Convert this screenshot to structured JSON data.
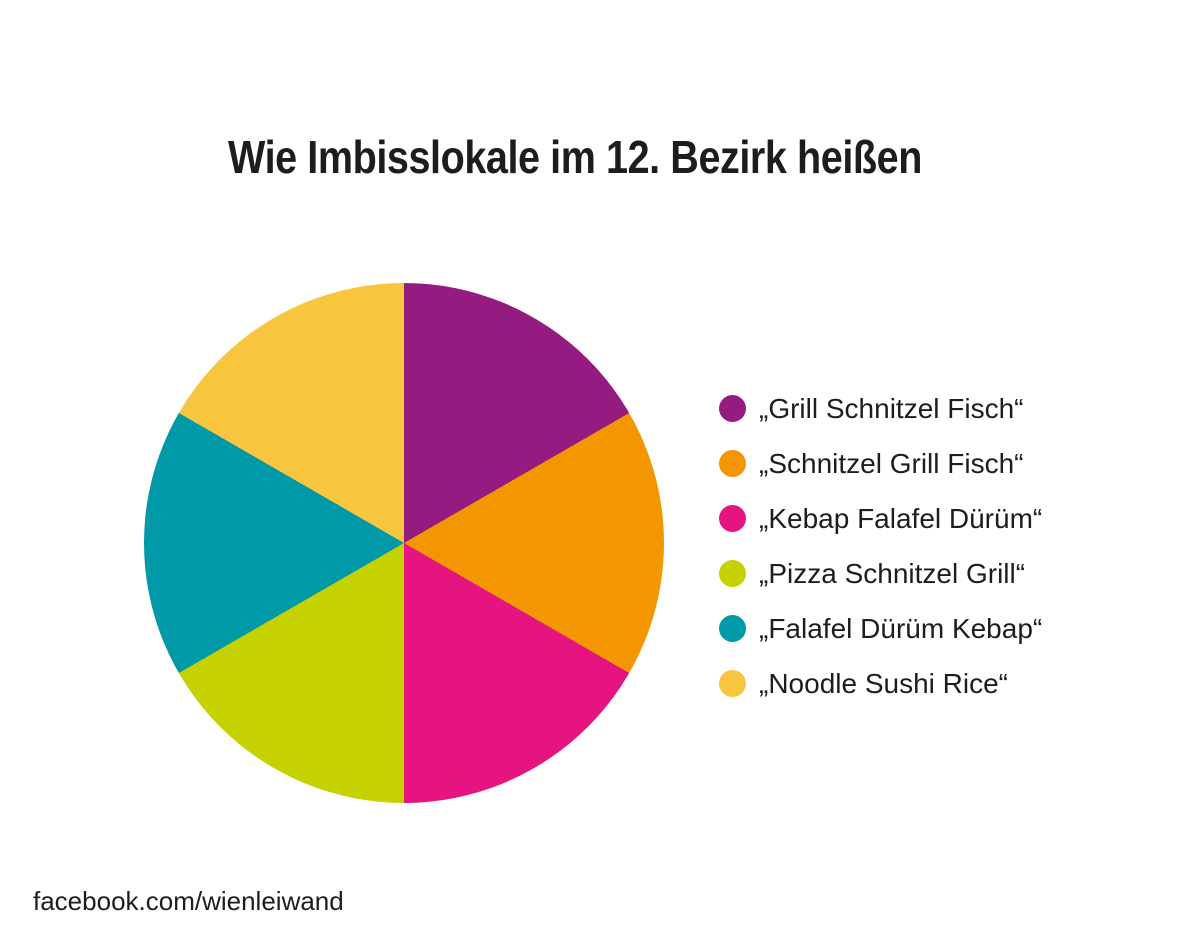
{
  "chart_data": {
    "type": "pie",
    "title": "Wie Imbisslokale im 12. Bezirk heißen",
    "direction": "clockwise",
    "start_angle_deg": 0,
    "legend_position": "right",
    "slices": [
      {
        "label": "„Grill Schnitzel Fisch“",
        "value": 1,
        "fraction": 0.1667,
        "color": "#941b80"
      },
      {
        "label": "„Schnitzel Grill Fisch“",
        "value": 1,
        "fraction": 0.1667,
        "color": "#f49600"
      },
      {
        "label": "„Kebap Falafel Dürüm“",
        "value": 1,
        "fraction": 0.1667,
        "color": "#e61480"
      },
      {
        "label": "„Pizza Schnitzel Grill“",
        "value": 1,
        "fraction": 0.1667,
        "color": "#c6d200"
      },
      {
        "label": "„Falafel Dürüm Kebap“",
        "value": 1,
        "fraction": 0.1667,
        "color": "#0099a8"
      },
      {
        "label": "„Noodle Sushi Rice“",
        "value": 1,
        "fraction": 0.1667,
        "color": "#f8c63e"
      }
    ]
  },
  "footer": {
    "text": "facebook.com/wienleiwand"
  },
  "colors": {
    "background": "#ffffff",
    "text": "#1d1d1b"
  }
}
